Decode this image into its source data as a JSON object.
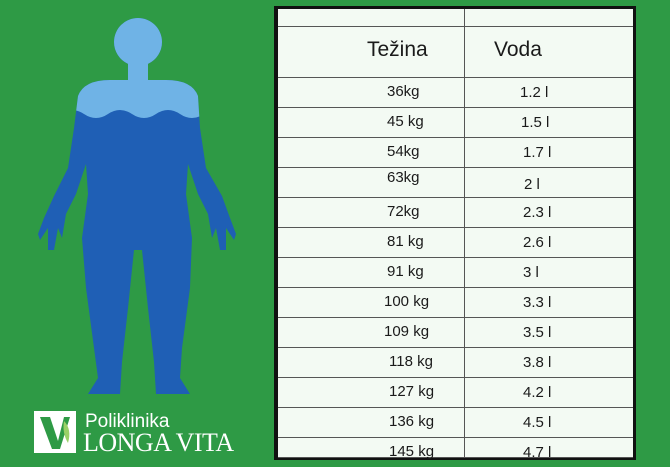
{
  "brand": {
    "name_line1": "Poliklinika",
    "name_line2": "LONGA VITA"
  },
  "colors": {
    "background": "#2e9a45",
    "body_fill": "#1f5fb5",
    "water_fill": "#6fb3e6",
    "table_bg": "#f3faf3"
  },
  "table": {
    "headers": [
      "Težina",
      "Voda"
    ],
    "rows": [
      {
        "weight": "36kg",
        "water": "1.2 l"
      },
      {
        "weight": "45 kg",
        "water": "1.5 l"
      },
      {
        "weight": "54kg",
        "water": "1.7 l"
      },
      {
        "weight": "63kg",
        "water": "2 l"
      },
      {
        "weight": "72kg",
        "water": "2.3 l"
      },
      {
        "weight": "81 kg",
        "water": "2.6 l"
      },
      {
        "weight": "91 kg",
        "water": "3 l"
      },
      {
        "weight": "100 kg",
        "water": "3.3 l"
      },
      {
        "weight": "109 kg",
        "water": "3.5 l"
      },
      {
        "weight": "118 kg",
        "water": "3.8 l"
      },
      {
        "weight": "127 kg",
        "water": "4.2 l"
      },
      {
        "weight": "136 kg",
        "water": "4.5 l"
      },
      {
        "weight": "145 kg",
        "water": "4.7 l"
      }
    ]
  }
}
